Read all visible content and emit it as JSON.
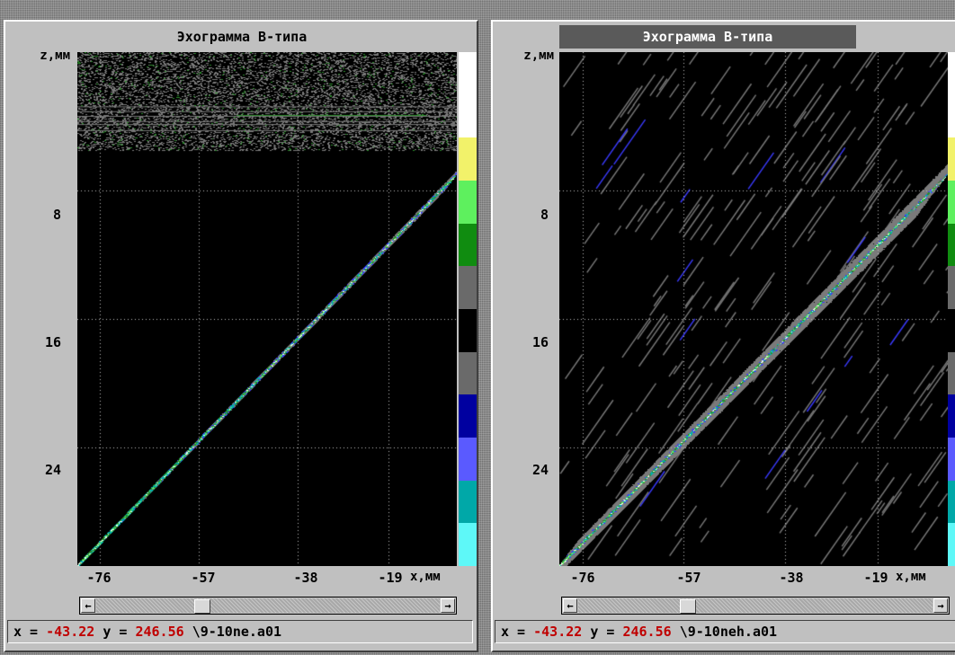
{
  "colorbar": [
    "#ffffff",
    "#ffffff",
    "#f2f26a",
    "#5ef05e",
    "#108c10",
    "#6a6a6a",
    "#000000",
    "#6a6a6a",
    "#0000a0",
    "#5a5aff",
    "#00a8a8",
    "#5ef8f8"
  ],
  "panels": [
    {
      "title": "Эхограмма В-типа",
      "z_label": "z,мм",
      "y_ticks": [
        "8",
        "16",
        "24"
      ],
      "x_ticks": [
        "-76",
        "-57",
        "-38",
        "-19"
      ],
      "x_label": "x,мм",
      "scroll_position": 0.3,
      "status": {
        "x_label": "x =",
        "x_value": "-43.22",
        "y_label": "y =",
        "y_value": "246.56",
        "file": "\\9-10ne.a01"
      }
    },
    {
      "title": "Эхограмма В-типа",
      "z_label": "z,мм",
      "y_ticks": [
        "8",
        "16",
        "24"
      ],
      "x_ticks": [
        "-76",
        "-57",
        "-38",
        "-19"
      ],
      "x_label": "x,мм",
      "scroll_position": 0.3,
      "status": {
        "x_label": "x =",
        "x_value": "-43.22",
        "y_label": "y =",
        "y_value": "246.56",
        "file": "\\9-10neh.a01"
      }
    }
  ]
}
